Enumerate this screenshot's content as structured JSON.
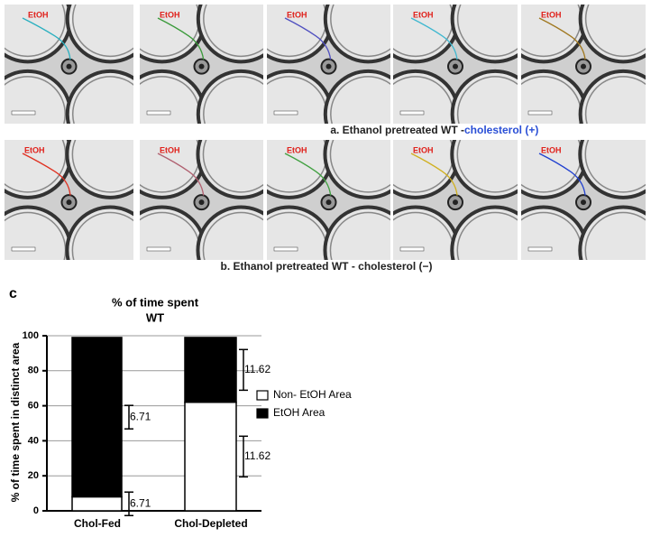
{
  "panels": [
    {
      "caption_prefix": "a. Ethanol pretreated WT - ",
      "caption_highlight": "cholesterol (+)",
      "labels": [
        "EtOH",
        "EtOH",
        "EtOH",
        "EtOH",
        "EtOH"
      ]
    },
    {
      "caption_prefix": "b. Ethanol pretreated WT - cholesterol (−)",
      "labels": [
        "EtOH",
        "EtOH",
        "EtOH",
        "EtOH",
        "EtOH"
      ]
    }
  ],
  "panel_letter": "c",
  "chart_data": {
    "type": "stacked_bar",
    "title": "% of time spent",
    "subtitle": "WT",
    "y_label": "% of time spent in distinct area",
    "categories": [
      "Chol-Fed",
      "Chol-Depleted"
    ],
    "series": [
      {
        "name": "Non- EtOH Area",
        "color": "#ffffff",
        "values": [
          8,
          62
        ],
        "errors": [
          6.71,
          11.62
        ]
      },
      {
        "name": "EtOH Area",
        "color": "#000000",
        "values": [
          91,
          37
        ],
        "errors": [
          6.71,
          11.62
        ]
      }
    ],
    "ylim": [
      0,
      100
    ],
    "yticks": [
      0,
      20,
      40,
      60,
      80,
      100
    ],
    "grid": true
  }
}
